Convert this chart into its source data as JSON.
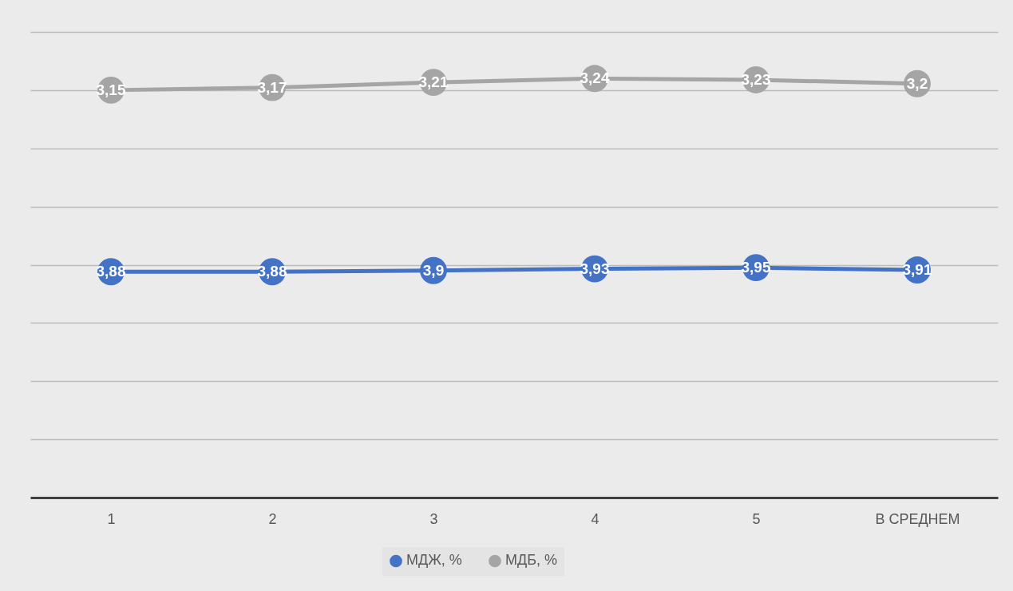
{
  "chart_data": {
    "type": "line",
    "categories": [
      "1",
      "2",
      "3",
      "4",
      "5",
      "В СРЕДНЕМ"
    ],
    "series": [
      {
        "name": "МДЖ, %",
        "color": "#4472c4",
        "values": [
          3.88,
          3.88,
          3.9,
          3.93,
          3.95,
          3.91
        ],
        "value_labels": [
          "3,88",
          "3,88",
          "3,9",
          "3,93",
          "3,95",
          "3,91"
        ]
      },
      {
        "name": "МДБ, %",
        "color": "#a5a5a5",
        "axis": "y2",
        "values": [
          3.15,
          3.17,
          3.21,
          3.24,
          3.23,
          3.2
        ],
        "value_labels": [
          "3,15",
          "3,17",
          "3,21",
          "3,24",
          "3,23",
          "3,2"
        ]
      }
    ],
    "ylim": [
      0,
      8
    ],
    "yticks": [
      {
        "value": 0,
        "label": null
      },
      {
        "value": 1,
        "label": null
      },
      {
        "value": 2,
        "label": null
      },
      {
        "value": 3,
        "label": null
      },
      {
        "value": 4,
        "label": null
      },
      {
        "value": 5,
        "label": null
      },
      {
        "value": 6,
        "label": null
      },
      {
        "value": 7,
        "label": null
      },
      {
        "value": 8,
        "label": null
      }
    ],
    "y2lim": [
      0,
      3.6
    ],
    "tick_labels": "x",
    "grid": "y",
    "legend": "bottom",
    "marker": "circle",
    "line_style": "solid"
  }
}
